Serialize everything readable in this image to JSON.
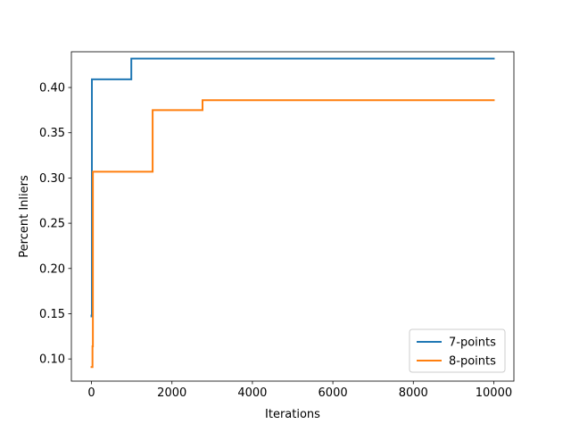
{
  "chart_data": {
    "type": "line",
    "title": "",
    "xlabel": "Iterations",
    "ylabel": "Percent Inliers",
    "xlim": [
      -500,
      10500
    ],
    "ylim": [
      0.0755,
      0.4395
    ],
    "xticks": [
      0,
      2000,
      4000,
      6000,
      8000,
      10000
    ],
    "xtick_labels": [
      "0",
      "2000",
      "4000",
      "6000",
      "8000",
      "10000"
    ],
    "yticks": [
      0.1,
      0.15,
      0.2,
      0.25,
      0.3,
      0.35,
      0.4
    ],
    "ytick_labels": [
      "0.10",
      "0.15",
      "0.20",
      "0.25",
      "0.30",
      "0.35",
      "0.40"
    ],
    "grid": false,
    "legend_position": "lower-right",
    "series": [
      {
        "name": "7-points",
        "color": "#1f77b4",
        "x": [
          0,
          0,
          10,
          10,
          990,
          990,
          10000
        ],
        "y": [
          0.148,
          0.147,
          0.147,
          0.409,
          0.409,
          0.432,
          0.432
        ]
      },
      {
        "name": "8-points",
        "color": "#ff7f0e",
        "x": [
          0,
          25,
          25,
          35,
          35,
          1520,
          1520,
          2760,
          2760,
          10000
        ],
        "y": [
          0.091,
          0.091,
          0.114,
          0.114,
          0.307,
          0.307,
          0.375,
          0.375,
          0.386,
          0.386
        ]
      }
    ]
  }
}
